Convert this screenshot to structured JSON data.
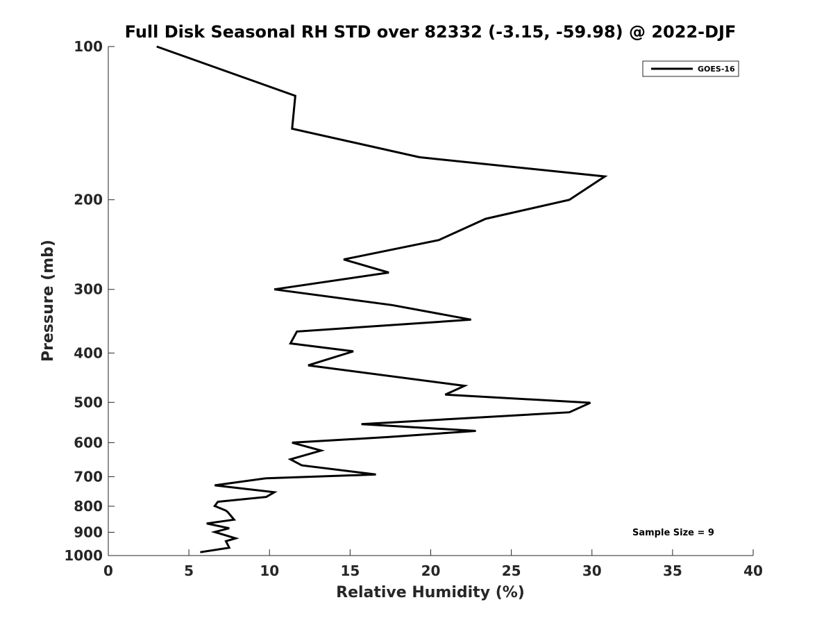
{
  "chart_data": {
    "type": "line",
    "title": "Full Disk Seasonal RH STD over 82332 (-3.15, -59.98) @ 2022-DJF",
    "xlabel": "Relative Humidity (%)",
    "ylabel": "Pressure (mb)",
    "xlim": [
      0,
      40
    ],
    "ylim": [
      100,
      1000
    ],
    "y_scale": "log",
    "y_reversed": true,
    "x_ticks": [
      0,
      5,
      10,
      15,
      20,
      25,
      30,
      35,
      40
    ],
    "x_tick_labels": [
      "0",
      "5",
      "10",
      "15",
      "20",
      "25",
      "30",
      "35",
      "40"
    ],
    "y_ticks": [
      100,
      200,
      300,
      400,
      500,
      600,
      700,
      800,
      900,
      1000
    ],
    "y_tick_labels": [
      "100",
      "200",
      "300",
      "400",
      "500",
      "600",
      "700",
      "800",
      "900",
      "1000"
    ],
    "grid": false,
    "legend_placement": "top-right",
    "annotation": "Sample Size = 9",
    "series": [
      {
        "name": "GOES-16",
        "color": "#000000",
        "x": [
          3.0,
          11.6,
          11.4,
          19.3,
          30.8,
          28.6,
          23.4,
          20.5,
          14.6,
          17.4,
          10.3,
          17.6,
          22.5,
          11.7,
          11.3,
          15.2,
          12.4,
          22.1,
          20.9,
          29.9,
          28.6,
          15.7,
          22.8,
          17.4,
          11.4,
          13.2,
          11.3,
          12.0,
          16.6,
          9.8,
          6.6,
          10.3,
          9.8,
          6.8,
          6.6,
          7.3,
          7.4,
          7.8,
          6.1,
          7.5,
          6.6,
          7.9,
          7.3,
          7.5,
          5.7
        ],
        "y": [
          100,
          125,
          145,
          165,
          180,
          200,
          218,
          240,
          262,
          278,
          300,
          322,
          344,
          363,
          383,
          397,
          423,
          464,
          483,
          501,
          523,
          552,
          569,
          585,
          600,
          622,
          647,
          665,
          693,
          705,
          728,
          751,
          767,
          784,
          799,
          816,
          821,
          850,
          865,
          884,
          899,
          925,
          937,
          965,
          985
        ]
      }
    ]
  }
}
